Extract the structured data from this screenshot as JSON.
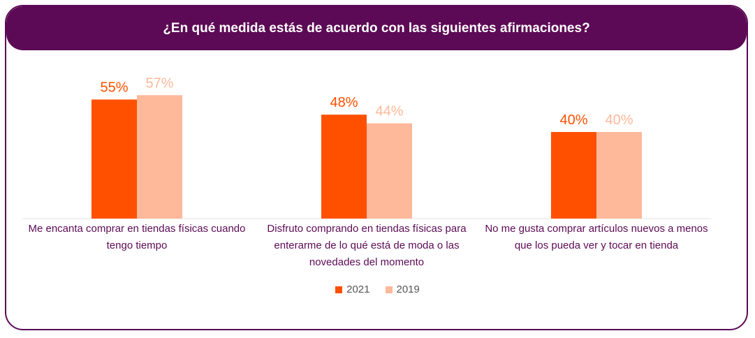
{
  "title": "¿En qué medida estás de acuerdo con las siguientes afirmaciones?",
  "colors": {
    "frame": "#5c0a55",
    "series_2021": "#ff5000",
    "series_2019": "#fdb999"
  },
  "chart_data": {
    "type": "bar",
    "categories": [
      "Me encanta comprar en tiendas físicas cuando tengo tiempo",
      "Disfruto comprando en tiendas físicas para enterarme de lo qué está de moda o las novedades del momento",
      "No me gusta comprar artículos nuevos a menos que los pueda ver y tocar en tienda"
    ],
    "series": [
      {
        "name": "2021",
        "values": [
          55,
          48,
          40
        ],
        "labels": [
          "55%",
          "48%",
          "40%"
        ],
        "color": "#ff5000"
      },
      {
        "name": "2019",
        "values": [
          57,
          44,
          40
        ],
        "labels": [
          "57%",
          "44%",
          "40%"
        ],
        "color": "#fdb999"
      }
    ],
    "ylim": [
      0,
      100
    ],
    "grid": false,
    "legend": "bottom"
  }
}
